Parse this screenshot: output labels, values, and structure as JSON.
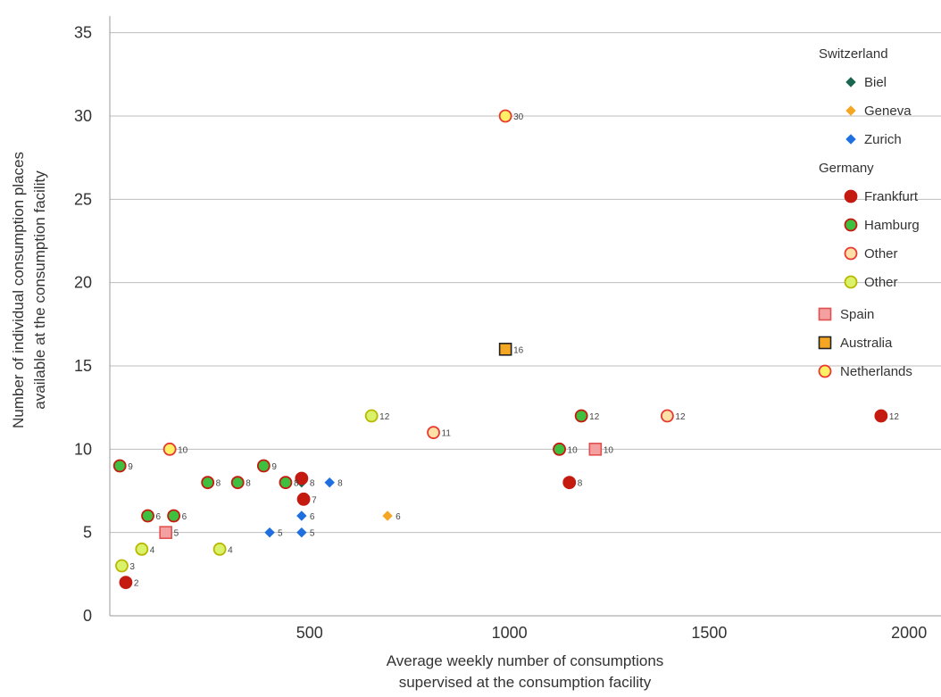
{
  "chart_data": {
    "type": "scatter",
    "title": "",
    "xlabel": [
      "Average weekly number of consumptions",
      "supervised at the consumption facility"
    ],
    "ylabel": [
      "Number of individual consumption places",
      "available at the consumption facility"
    ],
    "xlim": [
      0,
      2080
    ],
    "ylim": [
      0,
      36
    ],
    "x_ticks": [
      500,
      1000,
      1500,
      2000
    ],
    "y_ticks": [
      0,
      5,
      10,
      15,
      20,
      25,
      30,
      35
    ],
    "grid": "horizontal",
    "legend_position": "top-right",
    "legend_groups": [
      "Switzerland",
      "Germany"
    ],
    "series": [
      {
        "name": "Biel",
        "group": "Switzerland",
        "shape": "diamond",
        "fill": "#1a6650",
        "stroke": "#1a6650",
        "points": [
          [
            480,
            8,
            "8"
          ]
        ]
      },
      {
        "name": "Geneva",
        "group": "Switzerland",
        "shape": "diamond",
        "fill": "#f5a623",
        "stroke": "#f5a623",
        "points": [
          [
            695,
            6,
            "6"
          ]
        ]
      },
      {
        "name": "Zurich",
        "group": "Switzerland",
        "shape": "diamond",
        "fill": "#1f6fe0",
        "stroke": "#1f6fe0",
        "points": [
          [
            400,
            5,
            "5"
          ],
          [
            480,
            5,
            "5"
          ],
          [
            480,
            6,
            "6"
          ],
          [
            550,
            8,
            "8"
          ]
        ]
      },
      {
        "name": "Frankfurt",
        "group": "Germany",
        "shape": "circle",
        "fill": "#c41a0f",
        "stroke": "#c41a0f",
        "points": [
          [
            40,
            2,
            "2"
          ],
          [
            485,
            7,
            "7"
          ],
          [
            480,
            8.25,
            ""
          ],
          [
            1150,
            8,
            "8"
          ],
          [
            1930,
            12,
            "12"
          ]
        ]
      },
      {
        "name": "Hamburg",
        "group": "Germany",
        "shape": "circle",
        "fill": "#3fbf3f",
        "stroke": "#c41a0f",
        "points": [
          [
            25,
            9,
            "9"
          ],
          [
            95,
            6,
            "6"
          ],
          [
            160,
            6,
            "6"
          ],
          [
            245,
            8,
            "8"
          ],
          [
            320,
            8,
            "8"
          ],
          [
            385,
            9,
            "9"
          ],
          [
            440,
            8,
            "8"
          ],
          [
            1125,
            10,
            "10"
          ],
          [
            1180,
            12,
            "12"
          ]
        ]
      },
      {
        "name": "Other",
        "group": "Germany",
        "shape": "circle",
        "fill": "#fde0a8",
        "stroke": "#e8392f",
        "points": [
          [
            810,
            11,
            "11"
          ],
          [
            1395,
            12,
            "12"
          ]
        ]
      },
      {
        "name": "Other",
        "group": "Germany",
        "shape": "circle",
        "fill": "#d9f26a",
        "stroke": "#b8b800",
        "points": [
          [
            30,
            3,
            "3"
          ],
          [
            80,
            4,
            "4"
          ],
          [
            275,
            4,
            "4"
          ],
          [
            655,
            12,
            "12"
          ]
        ]
      },
      {
        "name": "Spain",
        "group": "",
        "shape": "square",
        "fill": "#f4a0a0",
        "stroke": "#e05050",
        "points": [
          [
            140,
            5,
            "5"
          ],
          [
            1215,
            10,
            "10"
          ]
        ]
      },
      {
        "name": "Australia",
        "group": "",
        "shape": "square",
        "fill": "#f5a623",
        "stroke": "#222222",
        "points": [
          [
            990,
            16,
            "16"
          ]
        ]
      },
      {
        "name": "Netherlands",
        "group": "",
        "shape": "circle",
        "fill": "#fff066",
        "stroke": "#e8392f",
        "points": [
          [
            150,
            10,
            "10"
          ],
          [
            990,
            30,
            "30"
          ]
        ]
      }
    ]
  }
}
